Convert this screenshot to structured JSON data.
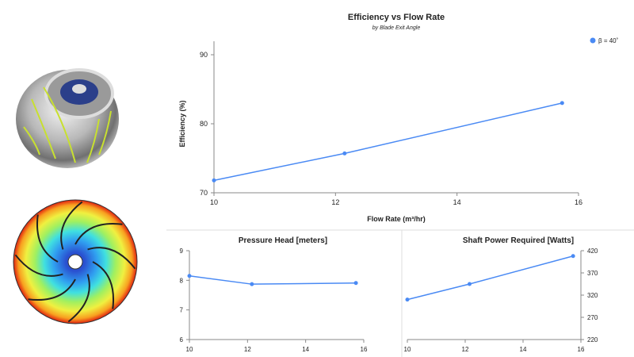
{
  "images": [
    {
      "name": "impeller-3d-render",
      "alt": "Metallic pump impeller with highlighted blades"
    },
    {
      "name": "impeller-pressure-contour",
      "alt": "Impeller contour plot"
    }
  ],
  "colors": {
    "series": "#4a8af4",
    "axis": "#888888",
    "divider": "#dddddd"
  },
  "chart_data": [
    {
      "type": "line",
      "title": "Efficiency vs Flow Rate",
      "subtitle": "by Blade Exit Angle",
      "xlabel": "Flow Rate (m³/hr)",
      "ylabel": "Efficiency (%)",
      "xlim": [
        10,
        16
      ],
      "ylim": [
        70,
        92
      ],
      "xticks": [
        "10",
        "12",
        "14",
        "16"
      ],
      "yticks": [
        "70",
        "80",
        "90"
      ],
      "legend": {
        "position": "top-right",
        "entries": [
          "β = 40˚"
        ]
      },
      "series": [
        {
          "name": "β = 40˚",
          "x": [
            10,
            12.15,
            15.73
          ],
          "y": [
            71.8,
            75.7,
            83.0
          ]
        }
      ]
    },
    {
      "type": "line",
      "title": "Pressure Head [meters]",
      "xlim": [
        10,
        16
      ],
      "ylim": [
        6,
        9
      ],
      "xticks": [
        "10",
        "12",
        "14",
        "16"
      ],
      "yticks": [
        "6",
        "7",
        "8",
        "9"
      ],
      "series": [
        {
          "name": "β = 40˚",
          "x": [
            10,
            12.15,
            15.73
          ],
          "y": [
            8.15,
            7.87,
            7.91
          ]
        }
      ]
    },
    {
      "type": "line",
      "title": "Shaft Power Required [Watts]",
      "xlim": [
        10,
        16
      ],
      "ylim": [
        220,
        420
      ],
      "xticks": [
        "10",
        "12",
        "14",
        "16"
      ],
      "yticks": [
        "220",
        "270",
        "320",
        "370",
        "420"
      ],
      "series": [
        {
          "name": "β = 40˚",
          "x": [
            10,
            12.15,
            15.73
          ],
          "y": [
            310,
            345,
            408
          ]
        }
      ]
    }
  ]
}
